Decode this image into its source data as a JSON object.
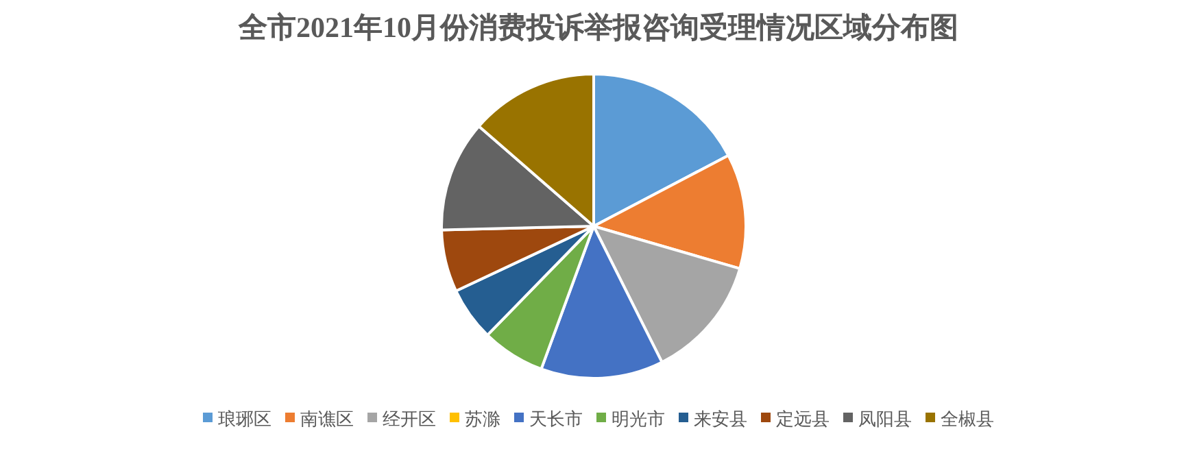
{
  "chart_data": {
    "type": "pie",
    "title": "全市2021年10月份消费投诉举报咨询受理情况区域分布图",
    "categories": [
      "琅琊区",
      "南谯区",
      "经开区",
      "苏滁",
      "天长市",
      "明光市",
      "来安县",
      "定远县",
      "凤阳县",
      "全椒县"
    ],
    "values": [
      17.3,
      12.2,
      13.1,
      0,
      13.0,
      6.7,
      5.7,
      6.6,
      11.8,
      13.6
    ],
    "colors": [
      "#5b9bd5",
      "#ed7d31",
      "#a5a5a5",
      "#ffc000",
      "#4472c4",
      "#70ad47",
      "#255e91",
      "#9e480e",
      "#636363",
      "#997300"
    ],
    "legend": "bottom"
  }
}
